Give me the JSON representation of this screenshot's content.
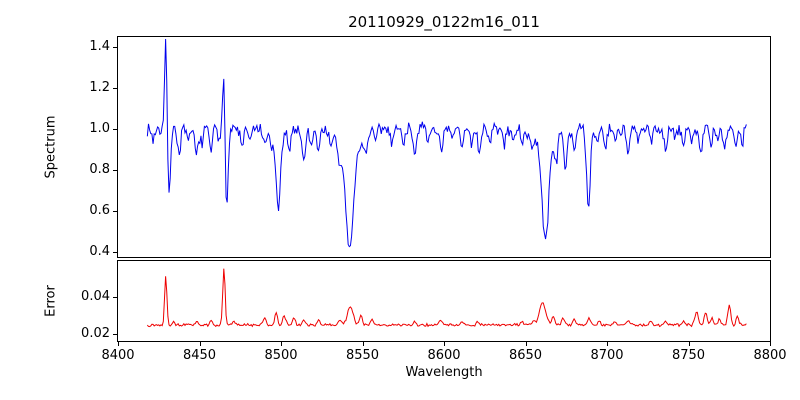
{
  "figure": {
    "background": "#ffffff"
  },
  "chart_data": [
    {
      "type": "line",
      "series_name": "spectrum",
      "title": "20110929_0122m16_011",
      "xlabel": "",
      "ylabel": "Spectrum",
      "color": "#0000ee",
      "xlim": [
        8400,
        8800
      ],
      "ylim": [
        0.375,
        1.45
      ],
      "x_range": [
        8418,
        8786
      ],
      "sample_step": 0.7,
      "baseline": 1.0,
      "noise_amplitude": 0.038,
      "noise_seed": 7,
      "show_xtick_labels": false,
      "grid": false,
      "legend": null,
      "yticks": [
        {
          "value": 0.4,
          "label": "0.4"
        },
        {
          "value": 0.6,
          "label": "0.6"
        },
        {
          "value": 0.8,
          "label": "0.8"
        },
        {
          "value": 1.0,
          "label": "1.0"
        },
        {
          "value": 1.2,
          "label": "1.2"
        },
        {
          "value": 1.4,
          "label": "1.4"
        }
      ],
      "xticks": [],
      "features": [
        [
          8421.5,
          -0.05,
          0.8
        ],
        [
          8429.3,
          0.44,
          0.7
        ],
        [
          8431.3,
          -0.3,
          0.9
        ],
        [
          8437.5,
          -0.12,
          0.9
        ],
        [
          8443,
          -0.08,
          0.8
        ],
        [
          8448,
          -0.13,
          1.0
        ],
        [
          8451.5,
          -0.08,
          0.8
        ],
        [
          8457,
          -0.1,
          0.9
        ],
        [
          8462,
          -0.07,
          0.8
        ],
        [
          8465,
          0.32,
          0.8
        ],
        [
          8466.6,
          -0.41,
          0.9
        ],
        [
          8476,
          -0.09,
          0.9
        ],
        [
          8481,
          -0.07,
          0.8
        ],
        [
          8490,
          -0.09,
          0.9
        ],
        [
          8494,
          -0.07,
          0.8
        ],
        [
          8498.3,
          -0.33,
          1.4
        ],
        [
          8498.3,
          -0.05,
          4
        ],
        [
          8505,
          -0.08,
          0.9
        ],
        [
          8514,
          -0.15,
          1.1
        ],
        [
          8518.5,
          -0.08,
          0.8
        ],
        [
          8523,
          -0.1,
          0.9
        ],
        [
          8531,
          -0.07,
          0.8
        ],
        [
          8536,
          -0.09,
          1.0
        ],
        [
          8542.1,
          -0.45,
          2.2
        ],
        [
          8542.1,
          -0.14,
          6
        ],
        [
          8552,
          -0.09,
          0.9
        ],
        [
          8558,
          -0.06,
          0.8
        ],
        [
          8568,
          -0.06,
          0.8
        ],
        [
          8575,
          -0.07,
          0.8
        ],
        [
          8582,
          -0.11,
          0.9
        ],
        [
          8590,
          -0.07,
          0.8
        ],
        [
          8598.5,
          -0.13,
          1.0
        ],
        [
          8605,
          -0.06,
          0.8
        ],
        [
          8611,
          -0.09,
          0.9
        ],
        [
          8617,
          -0.07,
          0.8
        ],
        [
          8621.5,
          -0.11,
          0.9
        ],
        [
          8628,
          -0.06,
          0.8
        ],
        [
          8637,
          -0.08,
          0.9
        ],
        [
          8642,
          -0.06,
          0.8
        ],
        [
          8648,
          -0.09,
          0.9
        ],
        [
          8654,
          -0.07,
          0.8
        ],
        [
          8662.2,
          -0.42,
          1.8
        ],
        [
          8662.2,
          -0.13,
          5
        ],
        [
          8669,
          -0.1,
          0.9
        ],
        [
          8674.5,
          -0.17,
          1.0
        ],
        [
          8680,
          -0.1,
          0.9
        ],
        [
          8688.6,
          -0.38,
          1.2
        ],
        [
          8694,
          -0.07,
          0.8
        ],
        [
          8699,
          -0.08,
          0.9
        ],
        [
          8705,
          -0.06,
          0.8
        ],
        [
          8713,
          -0.12,
          1.0
        ],
        [
          8719,
          -0.07,
          0.8
        ],
        [
          8727,
          -0.07,
          0.8
        ],
        [
          8736,
          -0.1,
          0.9
        ],
        [
          8742,
          -0.06,
          0.8
        ],
        [
          8747,
          -0.08,
          0.8
        ],
        [
          8752,
          -0.06,
          0.8
        ],
        [
          8757.5,
          -0.12,
          0.9
        ],
        [
          8764,
          -0.09,
          0.8
        ],
        [
          8768,
          -0.06,
          0.8
        ],
        [
          8772,
          -0.1,
          0.9
        ],
        [
          8779,
          -0.08,
          0.8
        ],
        [
          8783,
          -0.06,
          0.7
        ]
      ],
      "notable_points": [
        [
          8429,
          1.41
        ],
        [
          8431,
          0.73
        ],
        [
          8465,
          1.22
        ],
        [
          8467,
          0.63
        ],
        [
          8498,
          0.62
        ],
        [
          8542,
          0.41
        ],
        [
          8662,
          0.44
        ],
        [
          8689,
          0.62
        ]
      ]
    },
    {
      "type": "line",
      "series_name": "error",
      "title": "",
      "xlabel": "Wavelength",
      "ylabel": "Error",
      "color": "#ee0000",
      "xlim": [
        8400,
        8800
      ],
      "ylim": [
        0.016,
        0.06
      ],
      "x_range": [
        8418,
        8786
      ],
      "sample_step": 0.7,
      "baseline": 0.0248,
      "noise_amplitude": 0.0009,
      "noise_seed": 13,
      "show_xtick_labels": true,
      "grid": false,
      "legend": null,
      "yticks": [
        {
          "value": 0.02,
          "label": "0.02"
        },
        {
          "value": 0.04,
          "label": "0.04"
        }
      ],
      "xticks": [
        {
          "value": 8400,
          "label": "8400"
        },
        {
          "value": 8450,
          "label": "8450"
        },
        {
          "value": 8500,
          "label": "8500"
        },
        {
          "value": 8550,
          "label": "8550"
        },
        {
          "value": 8600,
          "label": "8600"
        },
        {
          "value": 8650,
          "label": "8650"
        },
        {
          "value": 8700,
          "label": "8700"
        },
        {
          "value": 8750,
          "label": "8750"
        },
        {
          "value": 8800,
          "label": "8800"
        }
      ],
      "features": [
        [
          8429.3,
          0.027,
          0.7
        ],
        [
          8434,
          0.002,
          0.8
        ],
        [
          8448,
          0.002,
          0.8
        ],
        [
          8457,
          0.002,
          0.8
        ],
        [
          8465,
          0.032,
          0.7
        ],
        [
          8471,
          0.002,
          0.8
        ],
        [
          8490,
          0.004,
          0.9
        ],
        [
          8497,
          0.006,
          0.9
        ],
        [
          8502,
          0.005,
          0.9
        ],
        [
          8508,
          0.004,
          0.8
        ],
        [
          8514,
          0.003,
          0.8
        ],
        [
          8523,
          0.003,
          0.8
        ],
        [
          8536,
          0.003,
          0.9
        ],
        [
          8542.5,
          0.01,
          1.8
        ],
        [
          8549,
          0.005,
          0.9
        ],
        [
          8556,
          0.003,
          0.8
        ],
        [
          8582,
          0.002,
          0.8
        ],
        [
          8598,
          0.003,
          0.9
        ],
        [
          8611,
          0.002,
          0.8
        ],
        [
          8621,
          0.002,
          0.8
        ],
        [
          8648,
          0.002,
          0.8
        ],
        [
          8655,
          0.002,
          0.8
        ],
        [
          8660.5,
          0.012,
          2.0
        ],
        [
          8667,
          0.005,
          0.9
        ],
        [
          8673,
          0.004,
          0.9
        ],
        [
          8680,
          0.003,
          0.8
        ],
        [
          8689,
          0.004,
          0.9
        ],
        [
          8695,
          0.002,
          0.8
        ],
        [
          8705,
          0.002,
          0.8
        ],
        [
          8713,
          0.003,
          0.9
        ],
        [
          8727,
          0.002,
          0.8
        ],
        [
          8736,
          0.002,
          0.8
        ],
        [
          8747,
          0.002,
          0.8
        ],
        [
          8755,
          0.008,
          1.0
        ],
        [
          8760.5,
          0.007,
          0.9
        ],
        [
          8764.5,
          0.004,
          0.8
        ],
        [
          8769,
          0.003,
          0.8
        ],
        [
          8775,
          0.011,
          0.9
        ],
        [
          8780,
          0.005,
          0.8
        ]
      ],
      "notable_points": [
        [
          8429,
          0.052
        ],
        [
          8465,
          0.057
        ],
        [
          8542,
          0.035
        ],
        [
          8661,
          0.038
        ],
        [
          8775,
          0.036
        ]
      ]
    }
  ]
}
